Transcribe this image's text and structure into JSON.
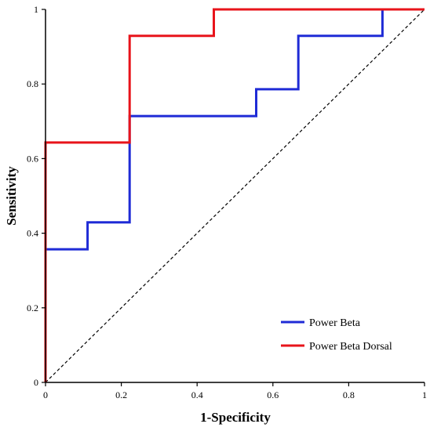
{
  "chart_data": {
    "type": "line",
    "xlabel": "1-Specificity",
    "ylabel": "Sensitivity",
    "xlim": [
      0,
      1
    ],
    "ylim": [
      0,
      1
    ],
    "xticks": [
      "0",
      "0.2",
      "0.4",
      "0.6",
      "0.8",
      "1"
    ],
    "yticks": [
      "0",
      "0.2",
      "0.4",
      "0.6",
      "0.8",
      "1"
    ],
    "grid": false,
    "legend_position": "bottom-right",
    "reference_line": {
      "style": "dashed",
      "color": "#000000",
      "from": [
        0,
        0
      ],
      "to": [
        1,
        1
      ]
    },
    "series": [
      {
        "name": "Power Beta",
        "color": "#1f2bd6",
        "step": true,
        "x": [
          0,
          0,
          0.111,
          0.111,
          0.222,
          0.222,
          0.556,
          0.556,
          0.667,
          0.667,
          0.889,
          0.889,
          1
        ],
        "y": [
          0,
          0.357,
          0.357,
          0.429,
          0.429,
          0.714,
          0.714,
          0.786,
          0.786,
          0.929,
          0.929,
          1,
          1
        ]
      },
      {
        "name": "Power Beta Dorsal",
        "color": "#e8141b",
        "step": true,
        "x": [
          0,
          0,
          0.222,
          0.222,
          0.444,
          0.444,
          1
        ],
        "y": [
          0,
          0.643,
          0.643,
          0.929,
          0.929,
          1,
          1
        ]
      }
    ]
  }
}
